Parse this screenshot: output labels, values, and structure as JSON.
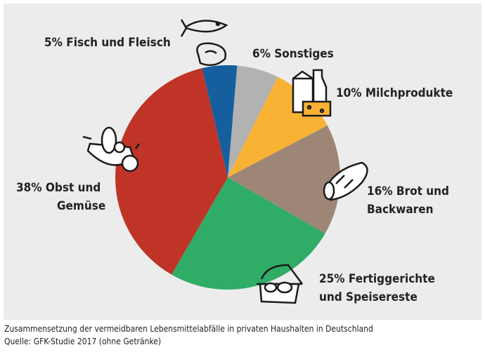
{
  "chart_data": {
    "type": "pie",
    "slices": [
      {
        "label": "6% Sonstiges",
        "value": 6,
        "color": "#b3b2b2",
        "icon": "misc-icon"
      },
      {
        "label": "10% Milchprodukte",
        "value": 10,
        "color": "#f9b233",
        "icon": "milk-cheese-icon"
      },
      {
        "label": "16% Brot und Backwaren",
        "value": 16,
        "color": "#9e8677",
        "icon": "bread-icon"
      },
      {
        "label": "25% Fertiggerichte und Speisereste",
        "value": 25,
        "color": "#2fac66",
        "icon": "ready-meal-icon"
      },
      {
        "label": "38% Obst und Gemüse",
        "value": 38,
        "color": "#c03327",
        "icon": "fruit-basket-icon"
      },
      {
        "label": "5% Fisch und Fleisch",
        "value": 5,
        "color": "#155f9e",
        "icon": "fish-meat-icon"
      }
    ],
    "labels": {
      "sonstiges": "6% Sonstiges",
      "milch": "10% Milchprodukte",
      "brot_1": "16% Brot und",
      "brot_2": "Backwaren",
      "fertig_1": "25% Fertiggerichte",
      "fertig_2": "und Speisereste",
      "obst_1": "38% Obst und",
      "obst_2": "Gemüse",
      "fisch": "5% Fisch und Fleisch"
    }
  },
  "caption": {
    "line1": "Zusammensetzung der vermeidbaren Lebensmittelabfälle in privaten Haushalten in Deutschland",
    "line2": "Quelle: GFK-Studie 2017 (ohne Getränke)"
  }
}
